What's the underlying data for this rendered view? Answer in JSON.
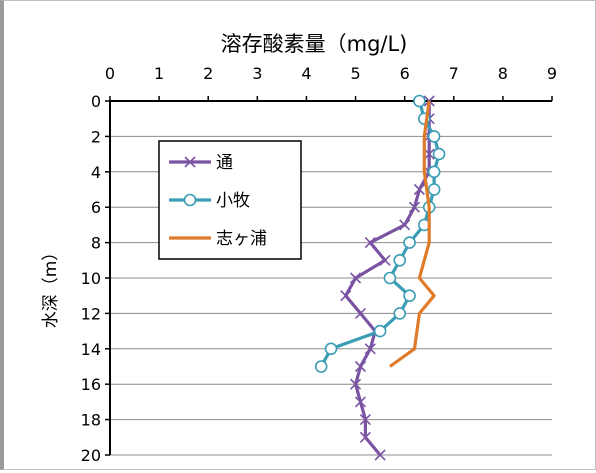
{
  "chart_data": {
    "type": "line",
    "title": "溶存酸素量（mg/L)",
    "xlabel": "",
    "ylabel": "水深（m）",
    "xlim": [
      0,
      9
    ],
    "ylim": [
      0,
      20
    ],
    "x_ticks": [
      "0",
      "1",
      "2",
      "3",
      "4",
      "5",
      "6",
      "7",
      "8",
      "9"
    ],
    "y_ticks": [
      "0",
      "2",
      "4",
      "6",
      "8",
      "10",
      "12",
      "14",
      "16",
      "18",
      "20"
    ],
    "y_inverted": true,
    "x_axis_position": "top",
    "grid": "horizontal",
    "legend_position": "upper-left",
    "series": [
      {
        "name": "通",
        "color": "#7a54a3",
        "marker": "x",
        "points": [
          {
            "depth": 0,
            "do": 6.5
          },
          {
            "depth": 1,
            "do": 6.5
          },
          {
            "depth": 2,
            "do": 6.5
          },
          {
            "depth": 3,
            "do": 6.5
          },
          {
            "depth": 4,
            "do": 6.5
          },
          {
            "depth": 5,
            "do": 6.3
          },
          {
            "depth": 6,
            "do": 6.2
          },
          {
            "depth": 7,
            "do": 6.0
          },
          {
            "depth": 8,
            "do": 5.3
          },
          {
            "depth": 9,
            "do": 5.6
          },
          {
            "depth": 10,
            "do": 5.0
          },
          {
            "depth": 11,
            "do": 4.8
          },
          {
            "depth": 12,
            "do": 5.1
          },
          {
            "depth": 13,
            "do": 5.4
          },
          {
            "depth": 14,
            "do": 5.3
          },
          {
            "depth": 15,
            "do": 5.1
          },
          {
            "depth": 16,
            "do": 5.0
          },
          {
            "depth": 17,
            "do": 5.1
          },
          {
            "depth": 18,
            "do": 5.2
          },
          {
            "depth": 19,
            "do": 5.2
          },
          {
            "depth": 20,
            "do": 5.5
          }
        ]
      },
      {
        "name": "小牧",
        "color": "#3a9cb5",
        "marker": "circle",
        "points": [
          {
            "depth": 0,
            "do": 6.3
          },
          {
            "depth": 1,
            "do": 6.4
          },
          {
            "depth": 2,
            "do": 6.6
          },
          {
            "depth": 3,
            "do": 6.7
          },
          {
            "depth": 4,
            "do": 6.6
          },
          {
            "depth": 5,
            "do": 6.6
          },
          {
            "depth": 6,
            "do": 6.5
          },
          {
            "depth": 7,
            "do": 6.4
          },
          {
            "depth": 8,
            "do": 6.1
          },
          {
            "depth": 9,
            "do": 5.9
          },
          {
            "depth": 10,
            "do": 5.7
          },
          {
            "depth": 11,
            "do": 6.1
          },
          {
            "depth": 12,
            "do": 5.9
          },
          {
            "depth": 13,
            "do": 5.5
          },
          {
            "depth": 14,
            "do": 4.5
          },
          {
            "depth": 15,
            "do": 4.3
          }
        ]
      },
      {
        "name": "志ヶ浦",
        "color": "#e07b2a",
        "marker": "none",
        "points": [
          {
            "depth": 0,
            "do": 6.5
          },
          {
            "depth": 2,
            "do": 6.4
          },
          {
            "depth": 4,
            "do": 6.4
          },
          {
            "depth": 6,
            "do": 6.5
          },
          {
            "depth": 8,
            "do": 6.5
          },
          {
            "depth": 10,
            "do": 6.3
          },
          {
            "depth": 11,
            "do": 6.6
          },
          {
            "depth": 12,
            "do": 6.3
          },
          {
            "depth": 14,
            "do": 6.2
          },
          {
            "depth": 15,
            "do": 5.7
          }
        ]
      }
    ]
  }
}
